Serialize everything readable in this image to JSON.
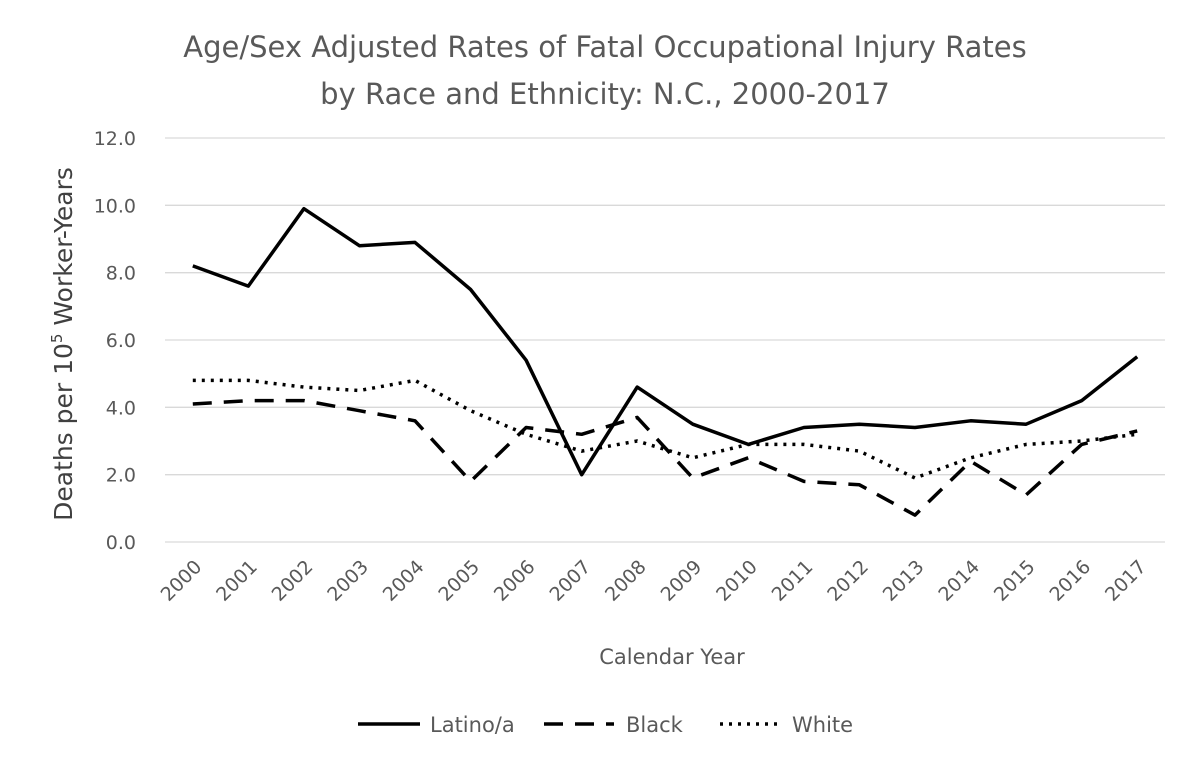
{
  "chart_data": {
    "type": "line",
    "title": "Age/Sex Adjusted Rates of Fatal Occupational Injury Rates",
    "subtitle": "by Race and Ethnicity: N.C., 2000-2017",
    "xlabel": "Calendar Year",
    "ylabel_parts": {
      "before": "Deaths per 10",
      "superscript": "5",
      "after": " Worker-Years"
    },
    "ylim": [
      0,
      12
    ],
    "yticks": [
      "0.0",
      "2.0",
      "4.0",
      "6.0",
      "8.0",
      "10.0",
      "12.0"
    ],
    "grid": true,
    "legend_position": "bottom",
    "categories": [
      "2000",
      "2001",
      "2002",
      "2003",
      "2004",
      "2005",
      "2006",
      "2007",
      "2008",
      "2009",
      "2010",
      "2011",
      "2012",
      "2013",
      "2014",
      "2015",
      "2016",
      "2017"
    ],
    "series": [
      {
        "name": "Latino/a",
        "style": "solid",
        "values": [
          8.2,
          7.6,
          9.9,
          8.8,
          8.9,
          7.5,
          5.4,
          2.0,
          4.6,
          3.5,
          2.9,
          3.4,
          3.5,
          3.4,
          3.6,
          3.5,
          4.2,
          5.5
        ]
      },
      {
        "name": "Black",
        "style": "dashed",
        "values": [
          4.1,
          4.2,
          4.2,
          3.9,
          3.6,
          1.8,
          3.4,
          3.2,
          3.7,
          1.9,
          2.5,
          1.8,
          1.7,
          0.8,
          2.4,
          1.4,
          2.9,
          3.3
        ]
      },
      {
        "name": "White",
        "style": "dotted",
        "values": [
          4.8,
          4.8,
          4.6,
          4.5,
          4.8,
          3.9,
          3.2,
          2.7,
          3.0,
          2.5,
          2.9,
          2.9,
          2.7,
          1.9,
          2.5,
          2.9,
          3.0,
          3.2
        ]
      }
    ],
    "line_color": "#000000",
    "grid_color": "#d9d9d9",
    "text_color": "#595959"
  }
}
